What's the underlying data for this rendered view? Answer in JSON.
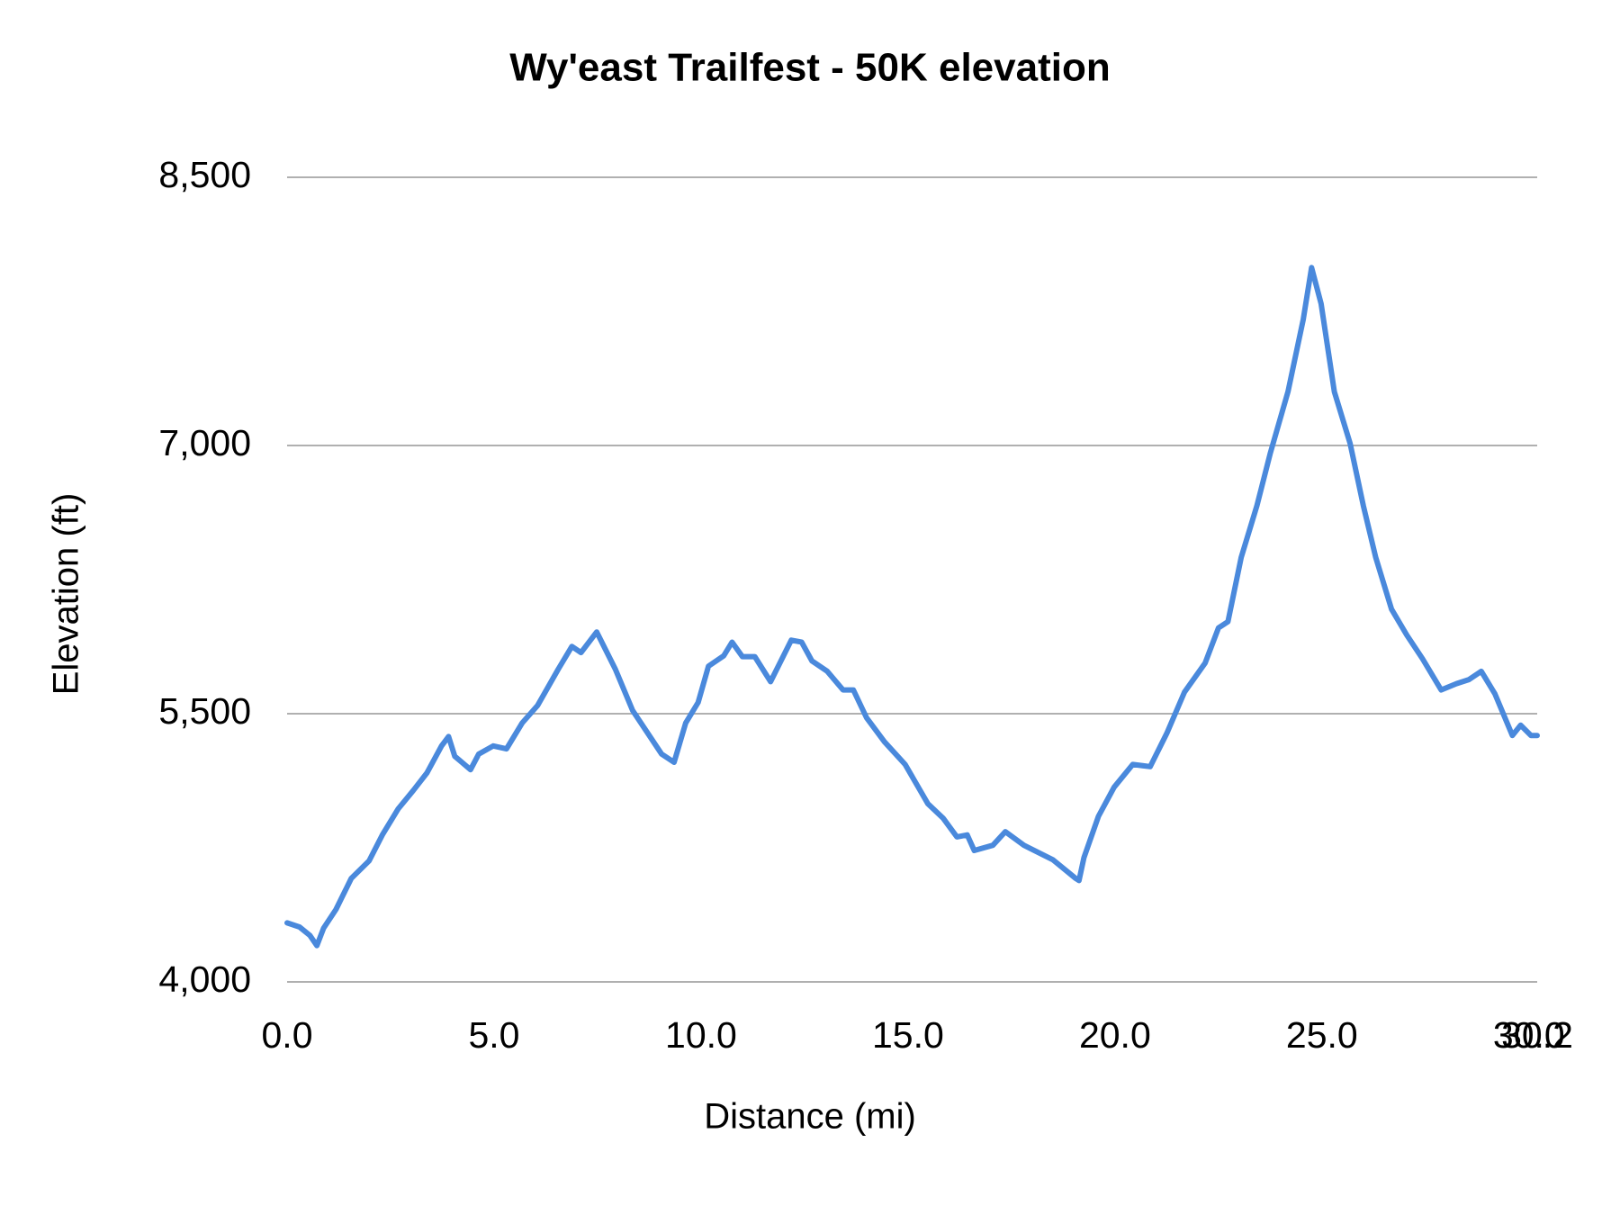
{
  "chart_data": {
    "type": "line",
    "title": "Wy'east Trailfest - 50K elevation",
    "x_label": "Distance (mi)",
    "y_label": "Elevation (ft)",
    "color": "#4a89dc",
    "grid": true,
    "xlim": [
      0,
      30.2
    ],
    "xticks": [
      {
        "value": 0,
        "label": "0.0"
      },
      {
        "value": 5,
        "label": "5.0"
      },
      {
        "value": 10,
        "label": "10.0"
      },
      {
        "value": 15,
        "label": "15.0"
      },
      {
        "value": 20,
        "label": "20.0"
      },
      {
        "value": 25,
        "label": "25.0"
      },
      {
        "value": 30,
        "label": "30.0"
      },
      {
        "value": 30.2,
        "label": "30.2"
      }
    ],
    "ylim": [
      4000,
      8500
    ],
    "yticks": [
      {
        "value": 4000,
        "label": "4,000"
      },
      {
        "value": 5500,
        "label": "5,500"
      },
      {
        "value": 7000,
        "label": "7,000"
      },
      {
        "value": 8500,
        "label": "8,500"
      }
    ],
    "x": [
      0,
      0.3,
      0.55,
      0.72,
      0.88,
      1.18,
      1.55,
      1.98,
      2.3,
      2.68,
      3.05,
      3.38,
      3.73,
      3.9,
      4.05,
      4.43,
      4.63,
      4.98,
      5.3,
      5.68,
      6.05,
      6.55,
      6.88,
      7.1,
      7.48,
      7.93,
      8.35,
      8.75,
      9.05,
      9.35,
      9.63,
      9.93,
      10.18,
      10.55,
      10.75,
      11.0,
      11.3,
      11.68,
      12.18,
      12.43,
      12.68,
      13.05,
      13.43,
      13.68,
      14.0,
      14.43,
      14.93,
      15.48,
      15.85,
      16.18,
      16.43,
      16.6,
      17.05,
      17.35,
      17.8,
      18.5,
      19.05,
      19.13,
      19.25,
      19.6,
      19.98,
      20.43,
      20.85,
      21.25,
      21.68,
      22.18,
      22.5,
      22.73,
      23.05,
      23.43,
      23.75,
      24.18,
      24.55,
      24.75,
      24.98,
      25.3,
      25.68,
      26.0,
      26.3,
      26.68,
      27.05,
      27.43,
      27.88,
      28.25,
      28.55,
      28.85,
      29.18,
      29.6,
      29.8,
      30.05,
      30.2
    ],
    "values": [
      4330,
      4307,
      4260,
      4203,
      4300,
      4405,
      4579,
      4677,
      4822,
      4967,
      5071,
      5170,
      5320,
      5372,
      5262,
      5187,
      5274,
      5320,
      5303,
      5448,
      5546,
      5749,
      5876,
      5842,
      5957,
      5749,
      5517,
      5378,
      5274,
      5228,
      5448,
      5563,
      5766,
      5824,
      5900,
      5819,
      5819,
      5679,
      5911,
      5900,
      5795,
      5737,
      5633,
      5633,
      5477,
      5343,
      5216,
      4996,
      4915,
      4811,
      4822,
      4735,
      4764,
      4840,
      4764,
      4683,
      4579,
      4567,
      4695,
      4926,
      5089,
      5216,
      5204,
      5390,
      5621,
      5784,
      5980,
      6015,
      6374,
      6664,
      6954,
      7301,
      7706,
      7995,
      7793,
      7301,
      7012,
      6664,
      6374,
      6085,
      5940,
      5807,
      5633,
      5668,
      5691,
      5737,
      5610,
      5378,
      5436,
      5378,
      5378
    ]
  }
}
